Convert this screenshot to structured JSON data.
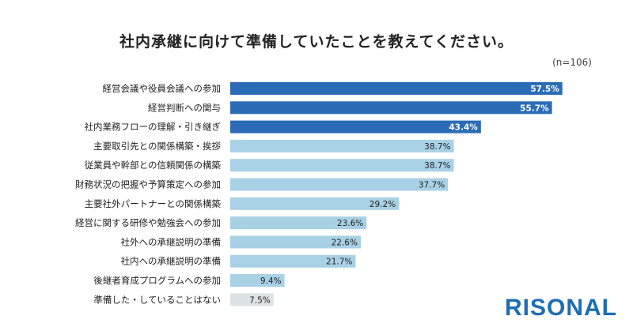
{
  "chart_data": {
    "type": "bar",
    "orientation": "horizontal",
    "title": "社内承継に向けて準備していたことを教えてください。",
    "note": "(n=106)",
    "categories": [
      "経営会議や役員会議への参加",
      "経営判断への関与",
      "社内業務フローの理解・引き継ぎ",
      "主要取引先との関係構築・挨拶",
      "従業員や幹部との信頼関係の構築",
      "財務状況の把握や予算策定への参加",
      "主要社外パートナーとの関係構築",
      "経営に関する研修や勉強会への参加",
      "社外への承継説明の準備",
      "社内への承継説明の準備",
      "後継者育成プログラムへの参加",
      "準備した・していることはない"
    ],
    "values": [
      57.5,
      55.7,
      43.4,
      38.7,
      38.7,
      37.7,
      29.2,
      23.6,
      22.6,
      21.7,
      9.4,
      7.5
    ],
    "value_suffix": "%",
    "colors": {
      "top3": "#2b6cb6",
      "others": "#a9d1e5",
      "none": "#dde2e5"
    },
    "grid": false,
    "legend": "none"
  },
  "logo": "RISONAL"
}
